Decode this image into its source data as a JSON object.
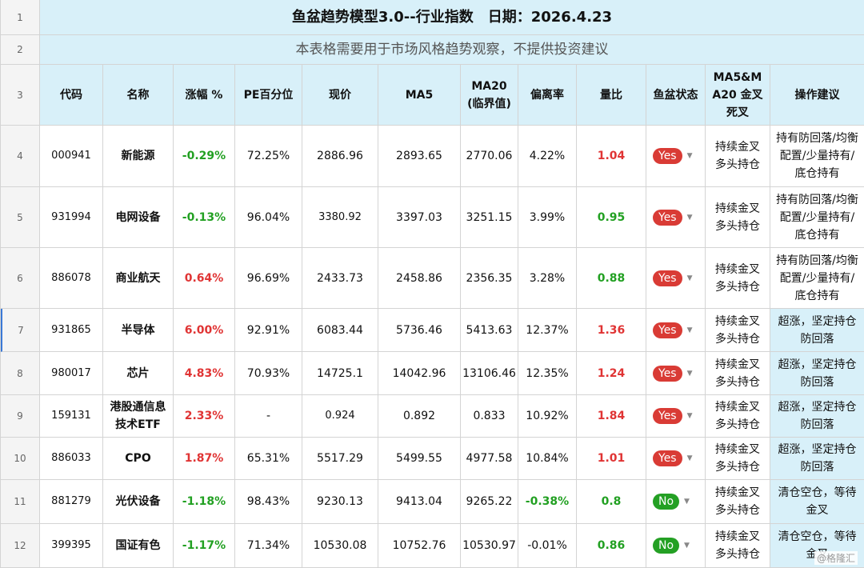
{
  "title": "鱼盆趋势模型3.0--行业指数　日期：2026.4.23",
  "subtitle": "本表格需要用于市场风格趋势观察，不提供投资建议",
  "row_numbers": [
    "1",
    "2",
    "3",
    "4",
    "5",
    "6",
    "7",
    "8",
    "9",
    "10",
    "11",
    "12"
  ],
  "headers": [
    "代码",
    "名称",
    "涨幅 %",
    "PE百分位",
    "现价",
    "MA5",
    "MA20\n(临界值)",
    "偏离率",
    "量比",
    "鱼盆状态",
    "MA5&MA20 金叉死叉",
    "操作建议"
  ],
  "rows": [
    {
      "code": "000941",
      "name": "新能源",
      "change": "-0.29%",
      "pe": "72.25%",
      "price": "2886.96",
      "ma5": "2893.65",
      "ma20": "2770.06",
      "dev": "4.22%",
      "vol": "1.04",
      "status": "Yes",
      "cross": "持续金叉多头持仓",
      "advice": "持有防回落/均衡配置/少量持有/底仓持有"
    },
    {
      "code": "931994",
      "name": "电网设备",
      "change": "-0.13%",
      "pe": "96.04%",
      "price": "3380.92",
      "ma5": "3397.03",
      "ma20": "3251.15",
      "dev": "3.99%",
      "vol": "0.95",
      "status": "Yes",
      "cross": "持续金叉多头持仓",
      "advice": "持有防回落/均衡配置/少量持有/底仓持有"
    },
    {
      "code": "886078",
      "name": "商业航天",
      "change": "0.64%",
      "pe": "96.69%",
      "price": "2433.73",
      "ma5": "2458.86",
      "ma20": "2356.35",
      "dev": "3.28%",
      "vol": "0.88",
      "status": "Yes",
      "cross": "持续金叉多头持仓",
      "advice": "持有防回落/均衡配置/少量持有/底仓持有"
    },
    {
      "code": "931865",
      "name": "半导体",
      "change": "6.00%",
      "pe": "92.91%",
      "price": "6083.44",
      "ma5": "5736.46",
      "ma20": "5413.63",
      "dev": "12.37%",
      "vol": "1.36",
      "status": "Yes",
      "cross": "持续金叉多头持仓",
      "advice": "超涨，坚定持仓防回落"
    },
    {
      "code": "980017",
      "name": "芯片",
      "change": "4.83%",
      "pe": "70.93%",
      "price": "14725.1",
      "ma5": "14042.96",
      "ma20": "13106.46",
      "dev": "12.35%",
      "vol": "1.24",
      "status": "Yes",
      "cross": "持续金叉多头持仓",
      "advice": "超涨，坚定持仓防回落"
    },
    {
      "code": "159131",
      "name": "港股通信息技术ETF",
      "change": "2.33%",
      "pe": "-",
      "price": "0.924",
      "ma5": "0.892",
      "ma20": "0.833",
      "dev": "10.92%",
      "vol": "1.84",
      "status": "Yes",
      "cross": "持续金叉多头持仓",
      "advice": "超涨，坚定持仓防回落"
    },
    {
      "code": "886033",
      "name": "CPO",
      "change": "1.87%",
      "pe": "65.31%",
      "price": "5517.29",
      "ma5": "5499.55",
      "ma20": "4977.58",
      "dev": "10.84%",
      "vol": "1.01",
      "status": "Yes",
      "cross": "持续金叉多头持仓",
      "advice": "超涨，坚定持仓防回落"
    },
    {
      "code": "881279",
      "name": "光伏设备",
      "change": "-1.18%",
      "pe": "98.43%",
      "price": "9230.13",
      "ma5": "9413.04",
      "ma20": "9265.22",
      "dev": "-0.38%",
      "vol": "0.8",
      "status": "No",
      "cross": "持续金叉多头持仓",
      "advice": "清仓空仓，等待金叉"
    },
    {
      "code": "399395",
      "name": "国证有色",
      "change": "-1.17%",
      "pe": "71.34%",
      "price": "10530.08",
      "ma5": "10752.76",
      "ma20": "10530.97",
      "dev": "-0.01%",
      "vol": "0.86",
      "status": "No",
      "cross": "持续金叉多头持仓",
      "advice": "清仓空仓，等待金叉"
    }
  ],
  "watermark": "@格隆汇",
  "colors": {
    "header_bg": "#d8f0f9",
    "positive": "#e03434",
    "negative": "#22a022",
    "badge_yes": "#d93b35",
    "badge_no": "#24a024"
  }
}
